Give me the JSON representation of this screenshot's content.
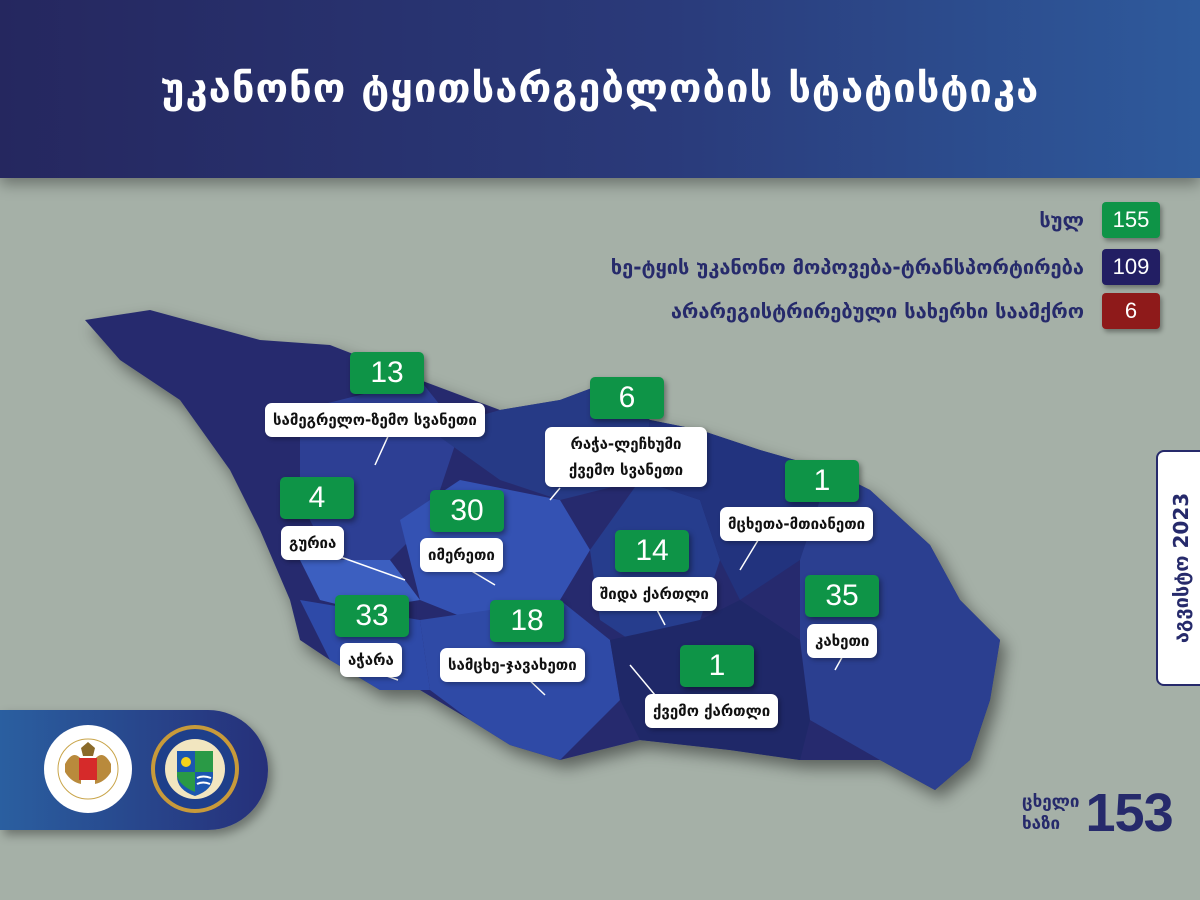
{
  "header": {
    "title": "უკანონო ტყითსარგებლობის სტატისტიკა"
  },
  "legend": [
    {
      "label": "სულ",
      "value": "155",
      "color": "#0e9447"
    },
    {
      "label": "ხე-ტყის უკანონო  მოპოვება-ტრანსპორტირება",
      "value": "109",
      "color": "#221e63"
    },
    {
      "label": "არარეგისტრირებული სახერხი საამქრო",
      "value": "6",
      "color": "#8e1a1a"
    }
  ],
  "regions": [
    {
      "name": "სამეგრელო-ზემო სვანეთი",
      "value": "13"
    },
    {
      "name": "რაჭა-ლეჩხუმი ქვემო სვანეთი",
      "value": "6"
    },
    {
      "name": "გურია",
      "value": "4"
    },
    {
      "name": "იმერეთი",
      "value": "30"
    },
    {
      "name": "შიდა ქართლი",
      "value": "14"
    },
    {
      "name": "მცხეთა-მთიანეთი",
      "value": "1"
    },
    {
      "name": "კახეთი",
      "value": "35"
    },
    {
      "name": "აჭარა",
      "value": "33"
    },
    {
      "name": "სამცხე-ჯავახეთი",
      "value": "18"
    },
    {
      "name": "ქვემო ქართლი",
      "value": "1"
    }
  ],
  "date": "აგვისტო 2023",
  "hotline": {
    "line1": "ცხელი",
    "line2": "ხაზი",
    "number": "153"
  },
  "logos": {
    "ministry": "Ministry of Environmental Protection and Agriculture of Georgia",
    "agency": "seal-emblem"
  }
}
